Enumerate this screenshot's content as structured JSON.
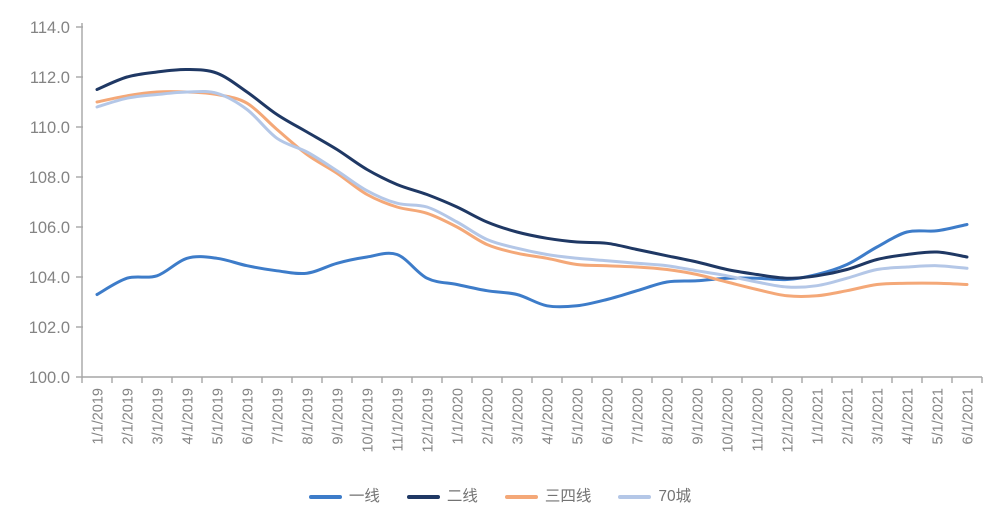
{
  "chart_data": {
    "type": "line",
    "title": "",
    "xlabel": "",
    "ylabel": "",
    "grid": false,
    "legend_position": "bottom",
    "ylim": [
      100.0,
      114.0
    ],
    "y_tick_step": 2.0,
    "y_tick_labels": [
      "100.0",
      "102.0",
      "104.0",
      "106.0",
      "108.0",
      "110.0",
      "112.0",
      "114.0"
    ],
    "x_labels": [
      "1/1/2019",
      "2/1/2019",
      "3/1/2019",
      "4/1/2019",
      "5/1/2019",
      "6/1/2019",
      "7/1/2019",
      "8/1/2019",
      "9/1/2019",
      "10/1/2019",
      "11/1/2019",
      "12/1/2019",
      "1/1/2020",
      "2/1/2020",
      "3/1/2020",
      "4/1/2020",
      "5/1/2020",
      "6/1/2020",
      "7/1/2020",
      "8/1/2020",
      "9/1/2020",
      "10/1/2020",
      "11/1/2020",
      "12/1/2020",
      "1/1/2021",
      "2/1/2021",
      "3/1/2021",
      "4/1/2021",
      "5/1/2021",
      "6/1/2021"
    ],
    "series": [
      {
        "name": "一线",
        "color": "#3D7CC9",
        "values": [
          103.3,
          103.95,
          104.05,
          104.75,
          104.75,
          104.45,
          104.25,
          104.15,
          104.55,
          104.8,
          104.9,
          103.95,
          103.7,
          103.45,
          103.3,
          102.85,
          102.85,
          103.1,
          103.45,
          103.8,
          103.85,
          103.95,
          103.95,
          103.9,
          104.1,
          104.5,
          105.2,
          105.8,
          105.85,
          106.1
        ]
      },
      {
        "name": "二线",
        "color": "#1F3864",
        "values": [
          111.5,
          112.0,
          112.2,
          112.3,
          112.15,
          111.4,
          110.5,
          109.8,
          109.1,
          108.3,
          107.7,
          107.3,
          106.8,
          106.2,
          105.8,
          105.55,
          105.4,
          105.35,
          105.1,
          104.85,
          104.6,
          104.3,
          104.1,
          103.95,
          104.05,
          104.3,
          104.7,
          104.9,
          105.0,
          104.8
        ]
      },
      {
        "name": "三四线",
        "color": "#F4A878",
        "values": [
          111.0,
          111.25,
          111.4,
          111.4,
          111.3,
          110.95,
          109.9,
          108.9,
          108.15,
          107.3,
          106.8,
          106.55,
          106.0,
          105.3,
          104.95,
          104.75,
          104.5,
          104.45,
          104.4,
          104.3,
          104.1,
          103.8,
          103.5,
          103.25,
          103.25,
          103.45,
          103.7,
          103.75,
          103.75,
          103.7
        ]
      },
      {
        "name": "70城",
        "color": "#B4C7E7",
        "values": [
          110.8,
          111.15,
          111.3,
          111.4,
          111.35,
          110.7,
          109.55,
          109.0,
          108.25,
          107.45,
          106.95,
          106.8,
          106.2,
          105.5,
          105.15,
          104.9,
          104.75,
          104.65,
          104.55,
          104.45,
          104.25,
          104.05,
          103.8,
          103.6,
          103.65,
          103.95,
          104.3,
          104.4,
          104.45,
          104.35
        ]
      }
    ],
    "axis_color": "#A6A6A6",
    "tick_label_color": "#848484",
    "legend_text_color": "#737373",
    "background_color": "#FFFFFF"
  }
}
